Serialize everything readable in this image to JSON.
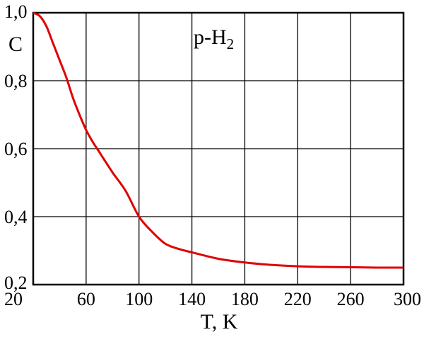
{
  "chart_data": {
    "type": "line",
    "title": "",
    "xlabel": "T, K",
    "ylabel": "C",
    "annotation": {
      "prefix": "p-H",
      "subscript": "2"
    },
    "xlim": [
      20,
      300
    ],
    "ylim": [
      0.2,
      1.0
    ],
    "x_ticks": [
      20,
      60,
      100,
      140,
      180,
      220,
      260,
      300
    ],
    "x_tick_labels": [
      "20",
      "60",
      "100",
      "140",
      "180",
      "220",
      "260",
      "300"
    ],
    "y_ticks": [
      0.2,
      0.4,
      0.6,
      0.8,
      1.0
    ],
    "y_tick_labels": [
      "0,2",
      "0,4",
      "0,6",
      "0,8",
      "1,0"
    ],
    "grid": true,
    "series": [
      {
        "color": "#e00000",
        "x": [
          20,
          25,
          30,
          35,
          40,
          45,
          50,
          55,
          60,
          65,
          70,
          80,
          90,
          100,
          110,
          120,
          130,
          140,
          160,
          180,
          200,
          220,
          240,
          260,
          280,
          300
        ],
        "y": [
          1.0,
          0.99,
          0.96,
          0.91,
          0.86,
          0.81,
          0.75,
          0.7,
          0.655,
          0.62,
          0.59,
          0.53,
          0.475,
          0.4,
          0.355,
          0.32,
          0.305,
          0.295,
          0.276,
          0.265,
          0.258,
          0.254,
          0.252,
          0.251,
          0.25,
          0.25
        ]
      }
    ]
  }
}
